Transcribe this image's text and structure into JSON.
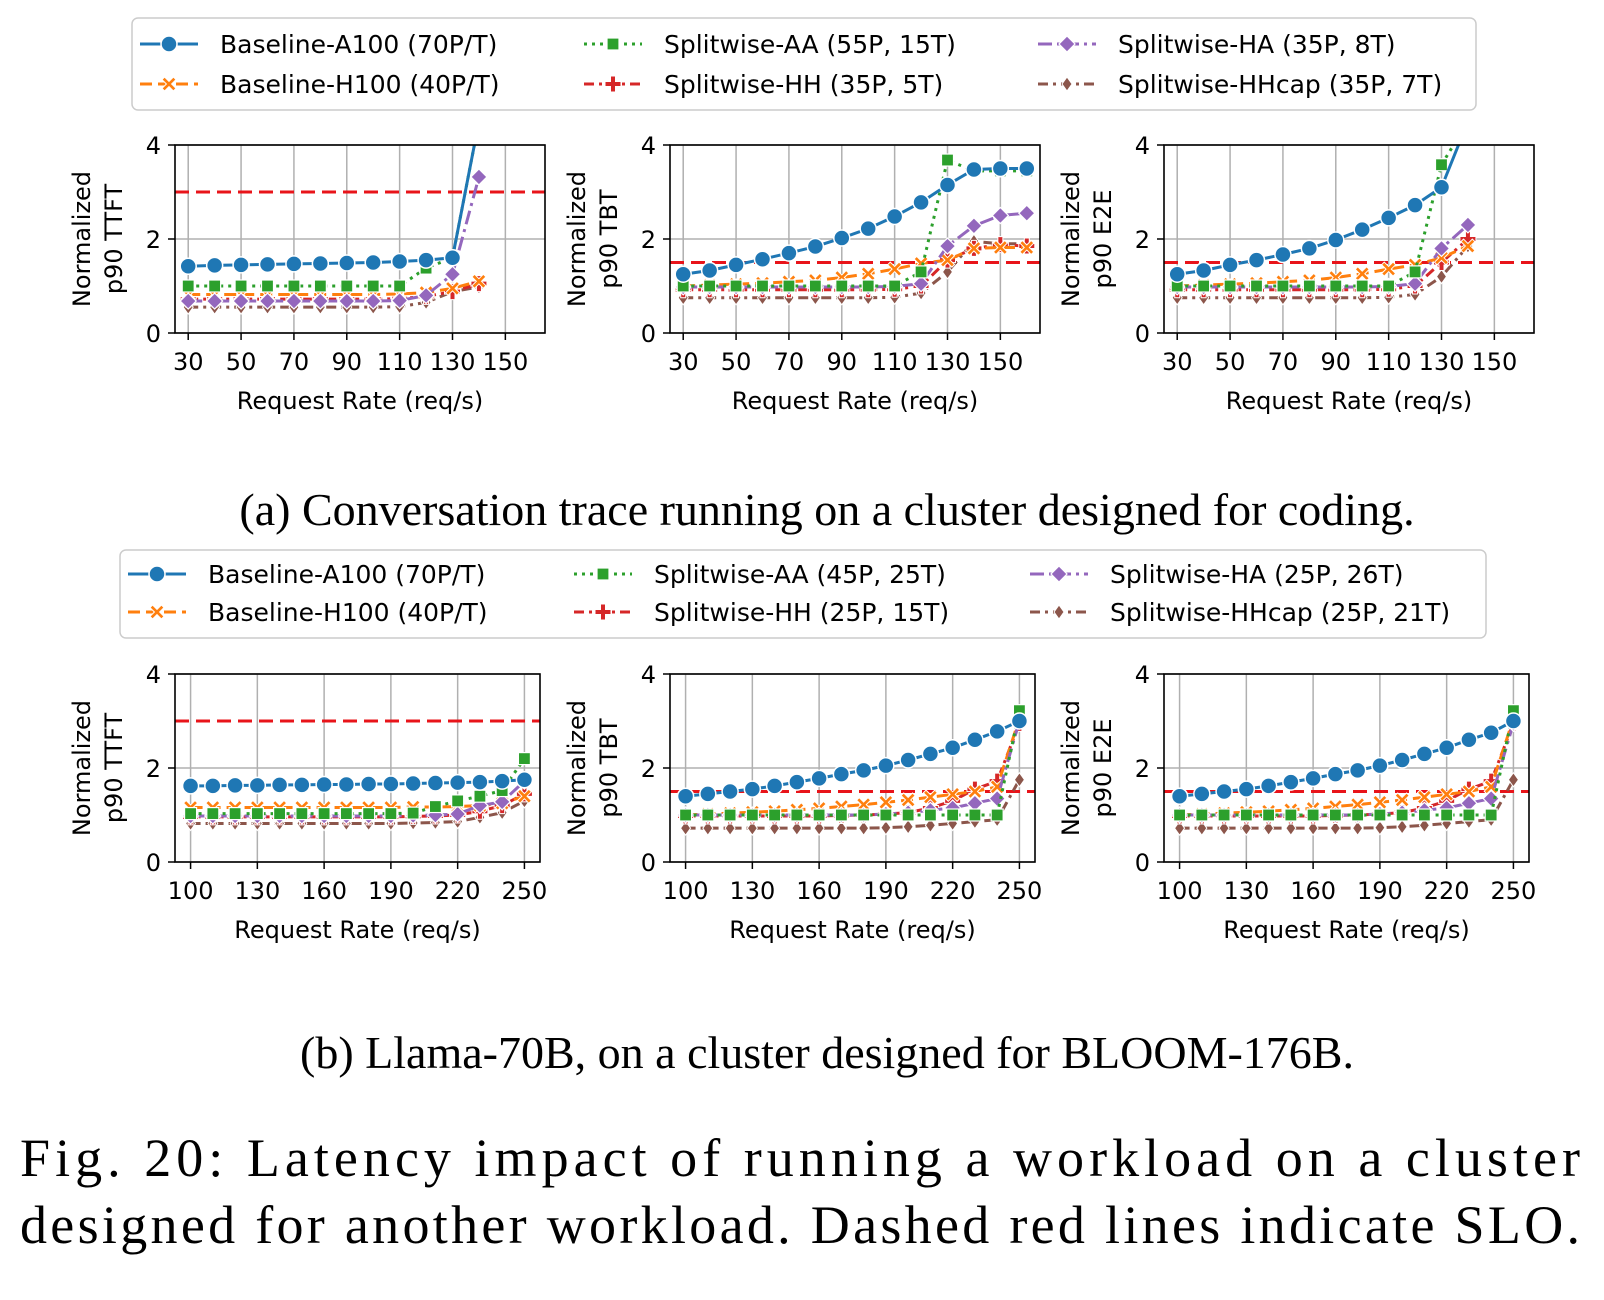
{
  "figure_caption_lines": [
    "Fig. 20: Latency impact of running a workload on a cluster",
    "designed for another workload. Dashed red lines indicate SLO."
  ],
  "colors": {
    "Baseline-A100": "#1f77b4",
    "Baseline-H100": "#ff7f0e",
    "Splitwise-AA": "#2ca02c",
    "Splitwise-HH": "#d62728",
    "Splitwise-HA": "#9467bd",
    "Splitwise-HHcap": "#8c564b",
    "slo": "#e8141a",
    "grid": "#b0b0b0"
  },
  "series_styles": [
    {
      "key": "Baseline-A100",
      "marker": "circle",
      "dash": ""
    },
    {
      "key": "Baseline-H100",
      "marker": "x",
      "dash": "12,6"
    },
    {
      "key": "Splitwise-AA",
      "marker": "square",
      "dash": "3,5"
    },
    {
      "key": "Splitwise-HH",
      "marker": "plus",
      "dash": "10,5,3,5"
    },
    {
      "key": "Splitwise-HA",
      "marker": "diamond",
      "dash": "14,5,3,5"
    },
    {
      "key": "Splitwise-HHcap",
      "marker": "thin-diamond",
      "dash": "10,5,3,5"
    }
  ],
  "panels": [
    {
      "caption": "(a) Conversation trace running on a cluster designed for coding.",
      "legend": [
        "Baseline-A100 (70P/T)",
        "Baseline-H100 (40P/T)",
        "Splitwise-AA (55P, 15T)",
        "Splitwise-HH (35P, 5T)",
        "Splitwise-HA (35P, 8T)",
        "Splitwise-HHcap (35P, 7T)"
      ]
    },
    {
      "caption": "(b) Llama-70B, on a cluster designed for BLOOM-176B.",
      "legend": [
        "Baseline-A100 (70P/T)",
        "Baseline-H100 (40P/T)",
        "Splitwise-AA (45P, 25T)",
        "Splitwise-HH (25P, 15T)",
        "Splitwise-HA (25P, 26T)",
        "Splitwise-HHcap (25P, 21T)"
      ]
    }
  ],
  "chart_data": [
    {
      "type": "line",
      "ylabel": [
        "Normalized",
        "p90 TTFT"
      ],
      "xlabel": "Request Rate (req/s)",
      "xlim": [
        25,
        165
      ],
      "ylim": [
        0,
        4
      ],
      "xticks": [
        "30",
        "50",
        "70",
        "90",
        "110",
        "130",
        "150"
      ],
      "xtick_values": [
        30,
        50,
        70,
        90,
        110,
        130,
        150
      ],
      "yticks": [
        "0",
        "2",
        "4"
      ],
      "slo": 3,
      "x": [
        30,
        40,
        50,
        60,
        70,
        80,
        90,
        100,
        110,
        120,
        130,
        140
      ],
      "series": [
        {
          "name": "Baseline-A100",
          "values": [
            1.42,
            1.44,
            1.45,
            1.46,
            1.47,
            1.48,
            1.49,
            1.5,
            1.52,
            1.55,
            1.6,
            4.5
          ]
        },
        {
          "name": "Baseline-H100",
          "values": [
            0.82,
            0.82,
            0.82,
            0.82,
            0.82,
            0.82,
            0.82,
            0.82,
            0.83,
            0.86,
            0.95,
            1.1
          ]
        },
        {
          "name": "Splitwise-AA",
          "values": [
            1.0,
            1.0,
            1.0,
            1.0,
            1.0,
            1.0,
            1.0,
            1.0,
            1.0,
            1.38,
            1.6,
            4.5
          ]
        },
        {
          "name": "Splitwise-HH",
          "values": [
            0.72,
            0.72,
            0.72,
            0.72,
            0.72,
            0.72,
            0.72,
            0.72,
            0.73,
            0.78,
            0.88,
            1.05
          ]
        },
        {
          "name": "Splitwise-HA",
          "values": [
            0.68,
            0.68,
            0.68,
            0.68,
            0.68,
            0.68,
            0.68,
            0.68,
            0.69,
            0.8,
            1.25,
            3.32
          ]
        },
        {
          "name": "Splitwise-HHcap",
          "values": [
            0.55,
            0.55,
            0.55,
            0.55,
            0.55,
            0.55,
            0.55,
            0.55,
            0.56,
            0.65,
            0.88,
            0.98
          ]
        }
      ]
    },
    {
      "type": "line",
      "ylabel": [
        "Normalized",
        "p90 TBT"
      ],
      "xlabel": "Request Rate (req/s)",
      "xlim": [
        25,
        165
      ],
      "ylim": [
        0,
        4
      ],
      "xticks": [
        "30",
        "50",
        "70",
        "90",
        "110",
        "130",
        "150"
      ],
      "xtick_values": [
        30,
        50,
        70,
        90,
        110,
        130,
        150
      ],
      "yticks": [
        "0",
        "2",
        "4"
      ],
      "slo": 1.5,
      "x": [
        30,
        40,
        50,
        60,
        70,
        80,
        90,
        100,
        110,
        120,
        130,
        140,
        150,
        160
      ],
      "series": [
        {
          "name": "Baseline-A100",
          "values": [
            1.25,
            1.33,
            1.45,
            1.57,
            1.7,
            1.84,
            2.02,
            2.22,
            2.48,
            2.78,
            3.15,
            3.48,
            3.5,
            3.5
          ]
        },
        {
          "name": "Baseline-H100",
          "values": [
            1.0,
            1.02,
            1.04,
            1.06,
            1.09,
            1.12,
            1.18,
            1.26,
            1.36,
            1.48,
            1.55,
            1.8,
            1.82,
            1.82
          ]
        },
        {
          "name": "Splitwise-AA",
          "values": [
            1.0,
            1.0,
            1.0,
            1.0,
            1.0,
            1.0,
            1.0,
            1.0,
            1.0,
            1.3,
            3.68,
            3.45,
            3.45,
            3.45
          ]
        },
        {
          "name": "Splitwise-HH",
          "values": [
            0.92,
            0.92,
            0.92,
            0.92,
            0.92,
            0.92,
            0.92,
            0.92,
            0.93,
            1.0,
            1.55,
            1.8,
            1.88,
            1.85
          ]
        },
        {
          "name": "Splitwise-HA",
          "values": [
            0.98,
            0.98,
            0.98,
            0.98,
            0.98,
            0.98,
            0.98,
            0.98,
            0.99,
            1.05,
            1.85,
            2.28,
            2.5,
            2.55
          ]
        },
        {
          "name": "Splitwise-HHcap",
          "values": [
            0.75,
            0.75,
            0.75,
            0.75,
            0.75,
            0.75,
            0.75,
            0.75,
            0.76,
            0.85,
            1.3,
            1.95,
            1.9,
            1.9
          ]
        }
      ]
    },
    {
      "type": "line",
      "ylabel": [
        "Normalized",
        "p90 E2E"
      ],
      "xlabel": "Request Rate (req/s)",
      "xlim": [
        25,
        165
      ],
      "ylim": [
        0,
        4
      ],
      "xticks": [
        "30",
        "50",
        "70",
        "90",
        "110",
        "130",
        "150"
      ],
      "xtick_values": [
        30,
        50,
        70,
        90,
        110,
        130,
        150
      ],
      "yticks": [
        "0",
        "2",
        "4"
      ],
      "slo": 1.5,
      "x": [
        30,
        40,
        50,
        60,
        70,
        80,
        90,
        100,
        110,
        120,
        130,
        140
      ],
      "series": [
        {
          "name": "Baseline-A100",
          "values": [
            1.25,
            1.33,
            1.45,
            1.55,
            1.67,
            1.8,
            1.98,
            2.2,
            2.45,
            2.72,
            3.1,
            4.5
          ]
        },
        {
          "name": "Baseline-H100",
          "values": [
            1.0,
            1.02,
            1.04,
            1.06,
            1.09,
            1.12,
            1.18,
            1.26,
            1.36,
            1.45,
            1.6,
            1.85
          ]
        },
        {
          "name": "Splitwise-AA",
          "values": [
            1.0,
            1.0,
            1.0,
            1.0,
            1.0,
            1.0,
            1.0,
            1.0,
            1.0,
            1.3,
            3.58,
            4.5
          ]
        },
        {
          "name": "Splitwise-HH",
          "values": [
            0.92,
            0.92,
            0.92,
            0.92,
            0.92,
            0.92,
            0.92,
            0.92,
            0.93,
            1.0,
            1.5,
            2.0
          ]
        },
        {
          "name": "Splitwise-HA",
          "values": [
            0.98,
            0.98,
            0.98,
            0.98,
            0.98,
            0.98,
            0.98,
            0.98,
            0.99,
            1.05,
            1.8,
            2.3
          ]
        },
        {
          "name": "Splitwise-HHcap",
          "values": [
            0.75,
            0.75,
            0.75,
            0.75,
            0.75,
            0.75,
            0.75,
            0.75,
            0.76,
            0.82,
            1.2,
            1.85
          ]
        }
      ]
    },
    {
      "type": "line",
      "ylabel": [
        "Normalized",
        "p90 TTFT"
      ],
      "xlabel": "Request Rate (req/s)",
      "xlim": [
        93,
        257
      ],
      "ylim": [
        0,
        4
      ],
      "xticks": [
        "100",
        "130",
        "160",
        "190",
        "220",
        "250"
      ],
      "xtick_values": [
        100,
        130,
        160,
        190,
        220,
        250
      ],
      "yticks": [
        "0",
        "2",
        "4"
      ],
      "slo": 3,
      "x": [
        100,
        110,
        120,
        130,
        140,
        150,
        160,
        170,
        180,
        190,
        200,
        210,
        220,
        230,
        240,
        250
      ],
      "series": [
        {
          "name": "Baseline-A100",
          "values": [
            1.62,
            1.62,
            1.63,
            1.63,
            1.64,
            1.64,
            1.65,
            1.65,
            1.66,
            1.66,
            1.67,
            1.68,
            1.69,
            1.7,
            1.72,
            1.75
          ]
        },
        {
          "name": "Baseline-H100",
          "values": [
            1.16,
            1.16,
            1.16,
            1.16,
            1.16,
            1.16,
            1.16,
            1.16,
            1.16,
            1.16,
            1.17,
            1.17,
            1.18,
            1.2,
            1.25,
            1.4
          ]
        },
        {
          "name": "Splitwise-AA",
          "values": [
            1.03,
            1.03,
            1.03,
            1.03,
            1.03,
            1.03,
            1.03,
            1.03,
            1.03,
            1.03,
            1.04,
            1.18,
            1.3,
            1.4,
            1.52,
            2.2
          ]
        },
        {
          "name": "Splitwise-HH",
          "values": [
            0.96,
            0.96,
            0.96,
            0.96,
            0.96,
            0.96,
            0.96,
            0.96,
            0.96,
            0.96,
            0.97,
            0.98,
            1.0,
            1.08,
            1.2,
            1.45
          ]
        },
        {
          "name": "Splitwise-HA",
          "values": [
            0.98,
            0.98,
            0.98,
            0.98,
            0.98,
            0.98,
            0.98,
            0.98,
            0.98,
            0.98,
            0.99,
            1.0,
            1.02,
            1.2,
            1.28,
            1.72
          ]
        },
        {
          "name": "Splitwise-HHcap",
          "values": [
            0.82,
            0.82,
            0.82,
            0.82,
            0.82,
            0.82,
            0.82,
            0.82,
            0.82,
            0.82,
            0.83,
            0.84,
            0.86,
            0.95,
            1.05,
            1.3
          ]
        }
      ]
    },
    {
      "type": "line",
      "ylabel": [
        "Normalized",
        "p90 TBT"
      ],
      "xlabel": "Request Rate (req/s)",
      "xlim": [
        93,
        257
      ],
      "ylim": [
        0,
        4
      ],
      "xticks": [
        "100",
        "130",
        "160",
        "190",
        "220",
        "250"
      ],
      "xtick_values": [
        100,
        130,
        160,
        190,
        220,
        250
      ],
      "yticks": [
        "0",
        "2",
        "4"
      ],
      "slo": 1.5,
      "x": [
        100,
        110,
        120,
        130,
        140,
        150,
        160,
        170,
        180,
        190,
        200,
        210,
        220,
        230,
        240,
        250
      ],
      "series": [
        {
          "name": "Baseline-A100",
          "values": [
            1.4,
            1.45,
            1.5,
            1.55,
            1.62,
            1.7,
            1.78,
            1.87,
            1.95,
            2.05,
            2.17,
            2.3,
            2.43,
            2.6,
            2.78,
            3.0
          ]
        },
        {
          "name": "Baseline-H100",
          "values": [
            1.0,
            1.02,
            1.04,
            1.06,
            1.08,
            1.11,
            1.14,
            1.18,
            1.22,
            1.27,
            1.32,
            1.38,
            1.44,
            1.5,
            1.6,
            3.05
          ]
        },
        {
          "name": "Splitwise-AA",
          "values": [
            1.0,
            1.0,
            1.0,
            1.0,
            1.0,
            1.0,
            1.0,
            1.0,
            1.0,
            1.0,
            1.0,
            1.0,
            1.0,
            1.0,
            1.0,
            3.22
          ]
        },
        {
          "name": "Splitwise-HH",
          "values": [
            0.98,
            0.98,
            0.98,
            0.98,
            0.98,
            0.98,
            0.98,
            0.99,
            1.0,
            1.02,
            1.05,
            1.15,
            1.3,
            1.55,
            1.72,
            2.95
          ]
        },
        {
          "name": "Splitwise-HA",
          "values": [
            1.0,
            1.0,
            1.0,
            1.0,
            1.0,
            1.0,
            1.0,
            1.0,
            1.0,
            1.02,
            1.05,
            1.1,
            1.15,
            1.25,
            1.35,
            3.0
          ]
        },
        {
          "name": "Splitwise-HHcap",
          "values": [
            0.72,
            0.72,
            0.72,
            0.72,
            0.72,
            0.72,
            0.72,
            0.72,
            0.72,
            0.73,
            0.75,
            0.78,
            0.82,
            0.86,
            0.9,
            1.75
          ]
        }
      ]
    },
    {
      "type": "line",
      "ylabel": [
        "Normalized",
        "p90 E2E"
      ],
      "xlabel": "Request Rate (req/s)",
      "xlim": [
        93,
        257
      ],
      "ylim": [
        0,
        4
      ],
      "xticks": [
        "100",
        "130",
        "160",
        "190",
        "220",
        "250"
      ],
      "xtick_values": [
        100,
        130,
        160,
        190,
        220,
        250
      ],
      "yticks": [
        "0",
        "2",
        "4"
      ],
      "slo": 1.5,
      "x": [
        100,
        110,
        120,
        130,
        140,
        150,
        160,
        170,
        180,
        190,
        200,
        210,
        220,
        230,
        240,
        250
      ],
      "series": [
        {
          "name": "Baseline-A100",
          "values": [
            1.4,
            1.45,
            1.5,
            1.55,
            1.62,
            1.7,
            1.78,
            1.87,
            1.95,
            2.05,
            2.17,
            2.3,
            2.43,
            2.6,
            2.75,
            3.0
          ]
        },
        {
          "name": "Baseline-H100",
          "values": [
            1.0,
            1.02,
            1.04,
            1.06,
            1.08,
            1.11,
            1.14,
            1.18,
            1.22,
            1.27,
            1.32,
            1.38,
            1.44,
            1.5,
            1.6,
            3.05
          ]
        },
        {
          "name": "Splitwise-AA",
          "values": [
            1.0,
            1.0,
            1.0,
            1.0,
            1.0,
            1.0,
            1.0,
            1.0,
            1.0,
            1.0,
            1.0,
            1.0,
            1.0,
            1.0,
            1.0,
            3.22
          ]
        },
        {
          "name": "Splitwise-HH",
          "values": [
            0.98,
            0.98,
            0.98,
            0.98,
            0.98,
            0.98,
            0.98,
            0.99,
            1.0,
            1.02,
            1.05,
            1.15,
            1.3,
            1.55,
            1.72,
            2.95
          ]
        },
        {
          "name": "Splitwise-HA",
          "values": [
            1.0,
            1.0,
            1.0,
            1.0,
            1.0,
            1.0,
            1.0,
            1.0,
            1.0,
            1.02,
            1.05,
            1.1,
            1.15,
            1.25,
            1.35,
            2.95
          ]
        },
        {
          "name": "Splitwise-HHcap",
          "values": [
            0.72,
            0.72,
            0.72,
            0.72,
            0.72,
            0.72,
            0.72,
            0.72,
            0.72,
            0.73,
            0.75,
            0.78,
            0.82,
            0.86,
            0.9,
            1.75
          ]
        }
      ]
    }
  ]
}
